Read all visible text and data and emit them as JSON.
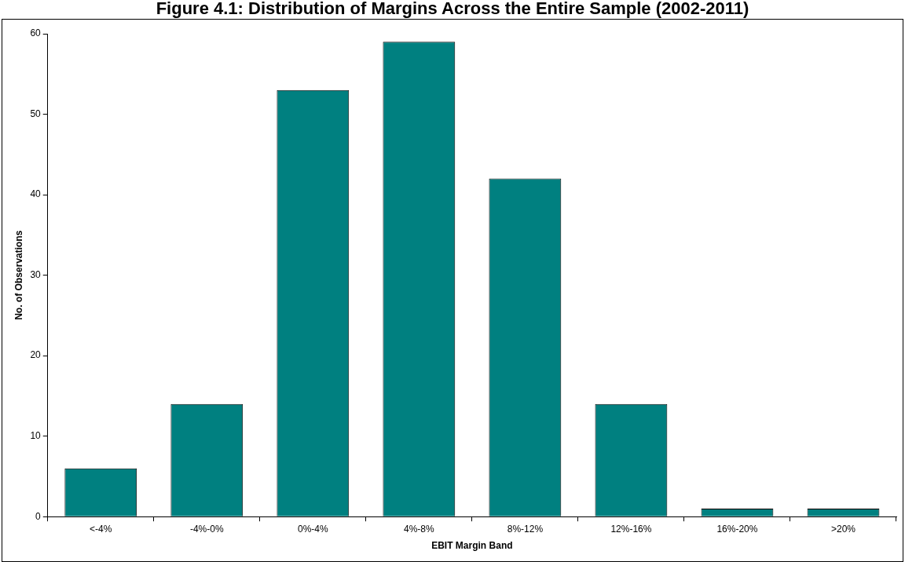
{
  "chart_data": {
    "type": "bar",
    "title": "Figure 4.1: Distribution of Margins Across the Entire Sample (2002-2011)",
    "xlabel": "EBIT Margin Band",
    "ylabel": "No. of Observations",
    "categories": [
      "<-4%",
      "-4%-0%",
      "0%-4%",
      "4%-8%",
      "8%-12%",
      "12%-16%",
      "16%-20%",
      ">20%"
    ],
    "values": [
      6,
      14,
      53,
      59,
      42,
      14,
      1,
      1
    ],
    "color": "#008080",
    "ylim": [
      0,
      60
    ],
    "yticks": [
      0,
      10,
      20,
      30,
      40,
      50,
      60
    ],
    "grid": false,
    "legend": false
  }
}
